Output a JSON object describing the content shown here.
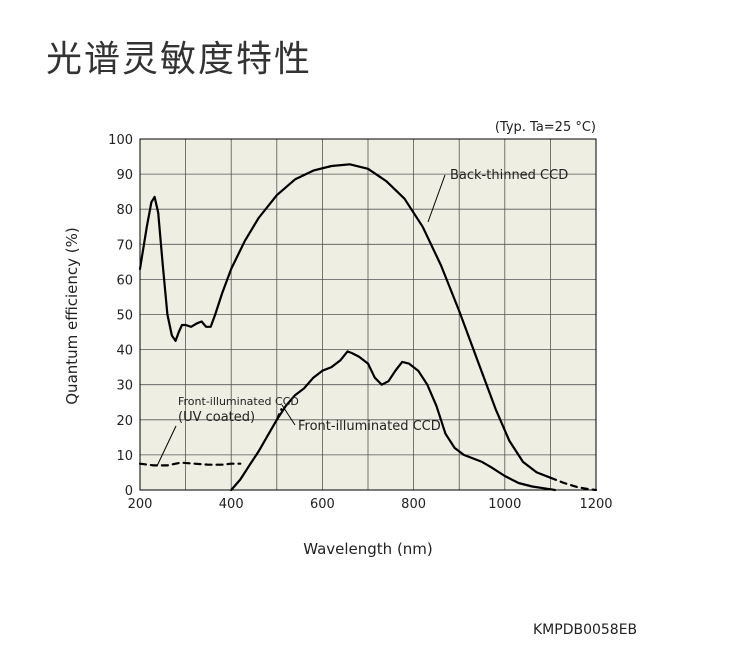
{
  "page": {
    "title": "光谱灵敏度特性",
    "code": "KMPDB0058EB"
  },
  "chart_data": {
    "type": "line",
    "conditions": "(Typ. Ta=25 °C)",
    "xlabel": "Wavelength (nm)",
    "ylabel": "Quantum efficiency (%)",
    "xlim": [
      200,
      1200
    ],
    "ylim": [
      0,
      100
    ],
    "xticks": [
      200,
      400,
      600,
      800,
      1000,
      1200
    ],
    "yticks": [
      0,
      10,
      20,
      30,
      40,
      50,
      60,
      70,
      80,
      90,
      100
    ],
    "x_minor_grid_step": 100,
    "y_grid_step": 10,
    "grid": true,
    "plot_background": "#eeeee2",
    "line_color": "#000000",
    "series": [
      {
        "name": "Back-thinned CCD",
        "style": "solid",
        "points": [
          [
            200,
            63
          ],
          [
            215,
            75
          ],
          [
            225,
            82
          ],
          [
            232,
            83.5
          ],
          [
            240,
            79
          ],
          [
            250,
            64
          ],
          [
            260,
            50
          ],
          [
            270,
            44
          ],
          [
            278,
            42.5
          ],
          [
            285,
            45
          ],
          [
            292,
            47
          ],
          [
            300,
            47
          ],
          [
            312,
            46.5
          ],
          [
            325,
            47.5
          ],
          [
            335,
            48
          ],
          [
            345,
            46.5
          ],
          [
            355,
            46.5
          ],
          [
            365,
            50
          ],
          [
            380,
            56
          ],
          [
            400,
            63
          ],
          [
            430,
            71
          ],
          [
            460,
            77.5
          ],
          [
            500,
            84
          ],
          [
            540,
            88.5
          ],
          [
            580,
            91
          ],
          [
            620,
            92.3
          ],
          [
            660,
            92.8
          ],
          [
            700,
            91.5
          ],
          [
            740,
            88
          ],
          [
            780,
            83
          ],
          [
            820,
            75
          ],
          [
            860,
            64
          ],
          [
            900,
            51
          ],
          [
            940,
            37
          ],
          [
            980,
            23
          ],
          [
            1010,
            14
          ],
          [
            1040,
            8
          ],
          [
            1070,
            5
          ],
          [
            1100,
            3.5
          ]
        ]
      },
      {
        "name": "Back-thinned CCD extrapolated",
        "style": "dashed",
        "points": [
          [
            1100,
            3.5
          ],
          [
            1130,
            2
          ],
          [
            1160,
            0.8
          ],
          [
            1185,
            0.2
          ],
          [
            1200,
            0
          ]
        ]
      },
      {
        "name": "Front-illuminated CCD",
        "style": "solid",
        "points": [
          [
            400,
            0
          ],
          [
            420,
            3
          ],
          [
            440,
            7
          ],
          [
            460,
            11
          ],
          [
            480,
            15.5
          ],
          [
            500,
            20
          ],
          [
            520,
            24
          ],
          [
            540,
            27
          ],
          [
            560,
            29
          ],
          [
            580,
            32
          ],
          [
            600,
            34
          ],
          [
            620,
            35
          ],
          [
            640,
            37
          ],
          [
            655,
            39.5
          ],
          [
            665,
            39
          ],
          [
            680,
            38
          ],
          [
            700,
            36
          ],
          [
            715,
            32
          ],
          [
            730,
            30
          ],
          [
            745,
            31
          ],
          [
            760,
            34
          ],
          [
            775,
            36.5
          ],
          [
            790,
            36
          ],
          [
            810,
            34
          ],
          [
            830,
            30
          ],
          [
            850,
            24
          ],
          [
            870,
            16
          ],
          [
            890,
            12
          ],
          [
            910,
            10
          ],
          [
            930,
            9
          ],
          [
            950,
            8
          ],
          [
            970,
            6.5
          ],
          [
            1000,
            4
          ],
          [
            1030,
            2
          ],
          [
            1060,
            1
          ],
          [
            1090,
            0.4
          ],
          [
            1110,
            0
          ]
        ]
      },
      {
        "name": "Front-illuminated CCD (UV coated)",
        "style": "dashed",
        "points": [
          [
            200,
            7.5
          ],
          [
            230,
            7
          ],
          [
            260,
            7
          ],
          [
            290,
            7.8
          ],
          [
            320,
            7.5
          ],
          [
            350,
            7.2
          ],
          [
            380,
            7.2
          ],
          [
            400,
            7.5
          ],
          [
            420,
            7.5
          ]
        ]
      },
      {
        "name": "Front-illuminated CCD (UV coated) join",
        "style": "dashed",
        "points": [
          [
            500,
            20
          ],
          [
            505,
            21.5
          ],
          [
            510,
            23
          ]
        ]
      }
    ],
    "annotations": [
      {
        "lines": [
          "Back-thinned CCD"
        ],
        "anchor": [
          840,
          76
        ],
        "target": "Back-thinned CCD"
      },
      {
        "lines": [
          "Front-illuminated CCD"
        ],
        "anchor": [
          520,
          24
        ],
        "target": "Front-illuminated CCD"
      },
      {
        "lines": [
          "Front-illuminated CCD",
          "(UV coated)"
        ],
        "anchor": [
          228,
          9
        ],
        "target": "Front-illuminated CCD (UV coated)"
      }
    ]
  }
}
